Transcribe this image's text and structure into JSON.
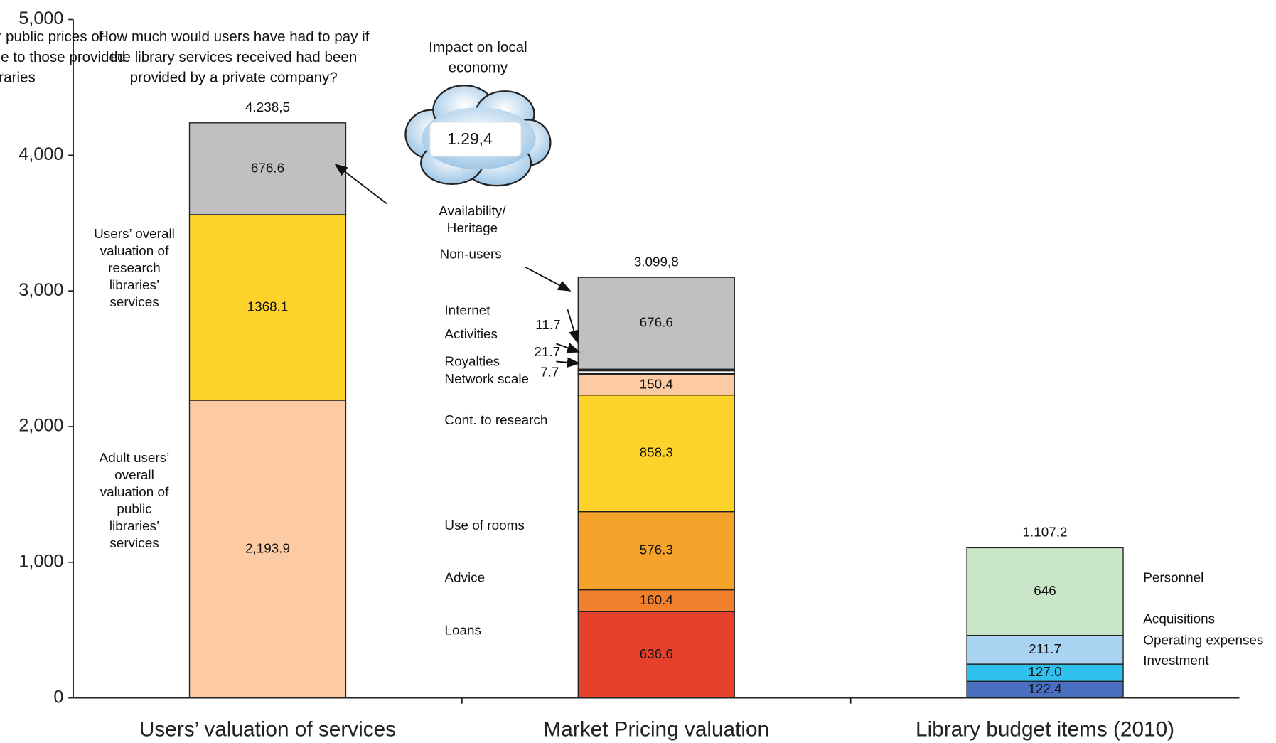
{
  "chart_data": {
    "type": "stacked-bar",
    "ylim": [
      0,
      5000
    ],
    "yticks": [
      0,
      {
        "value": 1000,
        "label": "1,000"
      },
      {
        "value": 2000,
        "label": "2,000"
      },
      {
        "value": 3000,
        "label": "3,000"
      },
      {
        "value": 4000,
        "label": "4,000"
      },
      {
        "value": 5000,
        "label": "5,000"
      }
    ],
    "cloud": {
      "title": [
        "Impact on local",
        "economy"
      ],
      "value_label": "1.29,4"
    },
    "stacks": [
      {
        "category": "Users’ valuation of services",
        "header": [
          "How much would users have had to pay if",
          "the library services received had been",
          "provided by a private company?"
        ],
        "total": 4238.5,
        "total_label": "4.238,5",
        "segments": [
          {
            "name": [
              "Adult users’",
              "overall",
              "valuation of",
              "public",
              "libraries’",
              "services"
            ],
            "value": 2193.9,
            "value_label": "2,193.9",
            "color": "#fccba3"
          },
          {
            "name": [
              "Users’ overall",
              "valuation of",
              "research",
              "libraries’",
              "services"
            ],
            "value": 1368.1,
            "color": "#fdd22b"
          },
          {
            "name": [
              "Availability/",
              "Heritage"
            ],
            "value": 676.6,
            "color": "#c0c0c2"
          }
        ]
      },
      {
        "category": "Market Pricing valuation",
        "header": [
          "Market prices or public prices of",
          "services comparable to those provided",
          "by libraries"
        ],
        "total": 3099.8,
        "total_label": "3.099,8",
        "segments": [
          {
            "name": [
              "Loans"
            ],
            "value": 636.6,
            "color": "#e8412b"
          },
          {
            "name": [
              "Advice"
            ],
            "value": 160.4,
            "color": "#f0802b"
          },
          {
            "name": [
              "Use of rooms"
            ],
            "value": 576.3,
            "color": "#f5a32b"
          },
          {
            "name": [
              "Cont. to research"
            ],
            "value": 858.3,
            "color": "#fdd22b"
          },
          {
            "name": [
              "Network scale"
            ],
            "value": 150.4,
            "color": "#fccba3"
          },
          {
            "name": [
              "Royalties"
            ],
            "value": 7.7,
            "color": "#111111"
          },
          {
            "name": [
              "Activities"
            ],
            "value": 21.7,
            "color": "#f5f5f5"
          },
          {
            "name": [
              "Internet"
            ],
            "value": 11.7,
            "color": "#111111"
          },
          {
            "name": [
              "Non-users"
            ],
            "value": 676.6,
            "color": "#c0c0c2"
          }
        ]
      },
      {
        "category": "Library budget items (2010)",
        "total": 1107.2,
        "total_label": "1.107,2",
        "segments": [
          {
            "name": [
              "Investment"
            ],
            "value": 122.4,
            "color": "#4a6fc0"
          },
          {
            "name": [
              "Operating expenses"
            ],
            "value": 127.0,
            "value_label": "127.0",
            "color": "#2ec1ee"
          },
          {
            "name": [
              "Acquisitions"
            ],
            "value": 211.7,
            "color": "#a9d4f1"
          },
          {
            "name": [
              "Personnel"
            ],
            "value": 646,
            "color": "#c9e6c9"
          }
        ]
      }
    ]
  }
}
